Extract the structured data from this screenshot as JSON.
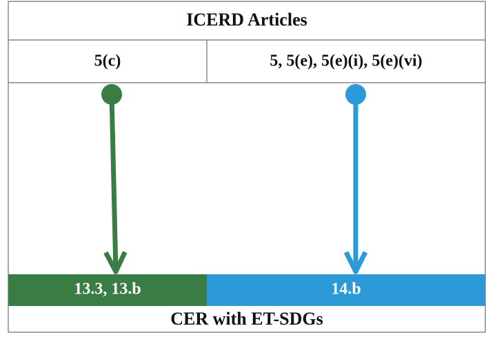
{
  "header": {
    "title": "ICERD Articles"
  },
  "columns": [
    {
      "article": "5(c)",
      "sdg": "13.3, 13.b"
    },
    {
      "article": "5, 5(e), 5(e)(i), 5(e)(vi)",
      "sdg": "14.b"
    }
  ],
  "footer": {
    "title": "CER with ET-SDGs"
  }
}
